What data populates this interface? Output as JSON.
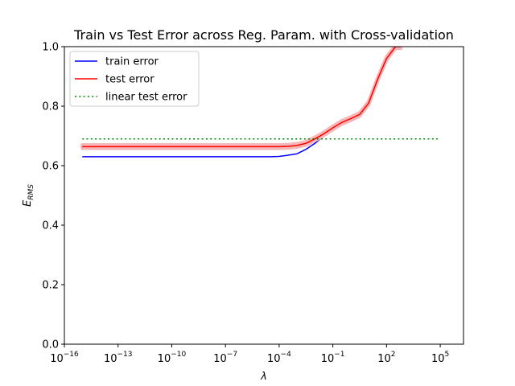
{
  "chart_data": {
    "type": "line",
    "title": "Train vs Test Error across Reg. Param. with Cross-validation",
    "xlabel": "λ",
    "ylabel": {
      "main": "E",
      "sub": "RMS"
    },
    "xscale": "log",
    "xlim_exponent": [
      -16,
      6.3
    ],
    "ylim": [
      0.0,
      1.0
    ],
    "x_ticks": [
      {
        "base": "10",
        "exp": "−16",
        "e": -16
      },
      {
        "base": "10",
        "exp": "−13",
        "e": -13
      },
      {
        "base": "10",
        "exp": "−10",
        "e": -10
      },
      {
        "base": "10",
        "exp": "−7",
        "e": -7
      },
      {
        "base": "10",
        "exp": "−4",
        "e": -4
      },
      {
        "base": "10",
        "exp": "−1",
        "e": -1
      },
      {
        "base": "10",
        "exp": "2",
        "e": 2
      },
      {
        "base": "10",
        "exp": "5",
        "e": 5
      }
    ],
    "y_ticks": [
      {
        "label": "0.0",
        "v": 0.0
      },
      {
        "label": "0.2",
        "v": 0.2
      },
      {
        "label": "0.4",
        "v": 0.4
      },
      {
        "label": "0.6",
        "v": 0.6
      },
      {
        "label": "0.8",
        "v": 0.8
      },
      {
        "label": "1.0",
        "v": 1.0
      }
    ],
    "grid": false,
    "legend_placement": "top-left",
    "series": [
      {
        "name": "train error",
        "color": "#0000ff",
        "style": "solid",
        "points": [
          [
            -15,
            0.63
          ],
          [
            -14,
            0.63
          ],
          [
            -13,
            0.63
          ],
          [
            -12,
            0.63
          ],
          [
            -11,
            0.63
          ],
          [
            -10,
            0.63
          ],
          [
            -9,
            0.63
          ],
          [
            -8,
            0.63
          ],
          [
            -7,
            0.63
          ],
          [
            -6,
            0.63
          ],
          [
            -5,
            0.63
          ],
          [
            -4.5,
            0.63
          ],
          [
            -4,
            0.631
          ],
          [
            -3.5,
            0.635
          ],
          [
            -3,
            0.64
          ],
          [
            -2.5,
            0.655
          ],
          [
            -2,
            0.675
          ],
          [
            -1.5,
            0.7
          ],
          [
            -1,
            0.72
          ],
          [
            -0.5,
            0.737
          ],
          [
            0,
            0.75
          ],
          [
            0.5,
            0.765
          ],
          [
            1,
            0.805
          ],
          [
            1.5,
            0.885
          ],
          [
            2,
            0.955
          ],
          [
            2.5,
            1.0
          ],
          [
            2.8,
            1.0
          ]
        ]
      },
      {
        "name": "test error",
        "color": "#ff0000",
        "style": "solid",
        "band_color": "#f4b6b6",
        "points": [
          [
            -15,
            0.664
          ],
          [
            -14,
            0.664
          ],
          [
            -13,
            0.664
          ],
          [
            -12,
            0.664
          ],
          [
            -11,
            0.664
          ],
          [
            -10,
            0.664
          ],
          [
            -9,
            0.664
          ],
          [
            -8,
            0.664
          ],
          [
            -7,
            0.664
          ],
          [
            -6,
            0.664
          ],
          [
            -5,
            0.664
          ],
          [
            -4.5,
            0.664
          ],
          [
            -4,
            0.664
          ],
          [
            -3.5,
            0.665
          ],
          [
            -3,
            0.668
          ],
          [
            -2.5,
            0.675
          ],
          [
            -2,
            0.69
          ],
          [
            -1.5,
            0.707
          ],
          [
            -1,
            0.727
          ],
          [
            -0.5,
            0.745
          ],
          [
            0,
            0.758
          ],
          [
            0.5,
            0.772
          ],
          [
            1,
            0.81
          ],
          [
            1.5,
            0.89
          ],
          [
            2,
            0.96
          ],
          [
            2.5,
            1.0
          ],
          [
            2.8,
            1.0
          ]
        ],
        "band_halfwidth": 0.006
      },
      {
        "name": "linear test error",
        "color": "#008000",
        "style": "dotted",
        "points": [
          [
            -15,
            0.69
          ],
          [
            5,
            0.69
          ]
        ]
      }
    ]
  }
}
